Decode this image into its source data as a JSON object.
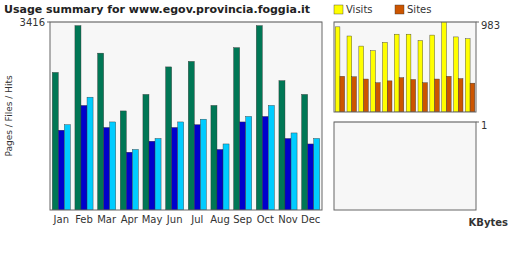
{
  "chart_data": [
    {
      "type": "bar",
      "title": "Usage summary for www.egov.provincia.foggia.it",
      "y_label": "Pages / Files / Hits",
      "categories": [
        "Jan",
        "Feb",
        "Mar",
        "Apr",
        "May",
        "Jun",
        "Jul",
        "Aug",
        "Sep",
        "Oct",
        "Nov",
        "Dec"
      ],
      "series": [
        {
          "color": "#007755",
          "values": [
            2500,
            3350,
            2850,
            1800,
            2100,
            2600,
            2700,
            1900,
            2950,
            3350,
            2350,
            2100
          ]
        },
        {
          "color": "#0000cc",
          "values": [
            1450,
            1900,
            1500,
            1050,
            1250,
            1500,
            1550,
            1100,
            1600,
            1700,
            1300,
            1200
          ]
        },
        {
          "color": "#00ccff",
          "values": [
            1550,
            2050,
            1600,
            1100,
            1300,
            1600,
            1650,
            1200,
            1700,
            1900,
            1400,
            1300
          ]
        }
      ],
      "ylim": [
        0,
        3416
      ],
      "yticks": [
        3416
      ],
      "grid": true
    },
    {
      "type": "bar",
      "categories": [
        null,
        null,
        null,
        null,
        null,
        null,
        null,
        null,
        null,
        null,
        null,
        null
      ],
      "series": [
        {
          "name": "Visits",
          "color": "#ffff00",
          "values": [
            930,
            830,
            720,
            670,
            760,
            850,
            850,
            780,
            840,
            983,
            820,
            800
          ]
        },
        {
          "name": "Sites",
          "color": "#cc5500",
          "values": [
            390,
            385,
            360,
            320,
            340,
            375,
            355,
            320,
            360,
            390,
            365,
            315
          ]
        }
      ],
      "ylim": [
        0,
        983
      ],
      "yticks": [
        983
      ],
      "grid": true,
      "legend": "top",
      "tick_labels": "y"
    },
    {
      "type": "bar",
      "y_label": "KBytes",
      "series": [],
      "ylim": [
        0,
        1
      ],
      "yticks": [
        1
      ],
      "grid": true,
      "tick_labels": "y"
    }
  ]
}
